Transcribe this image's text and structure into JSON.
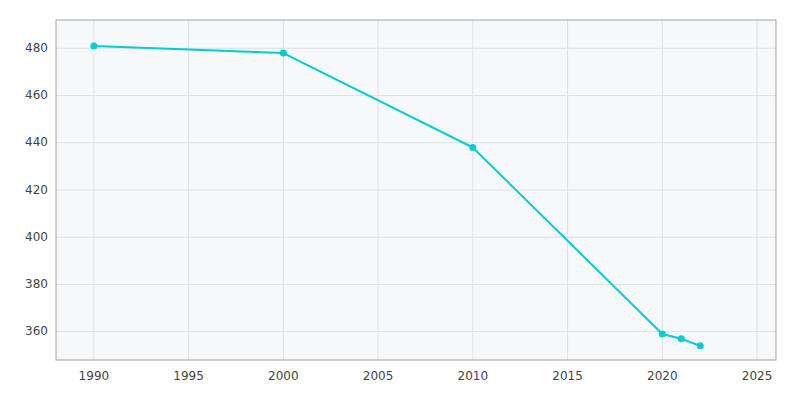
{
  "chart_data": {
    "type": "line",
    "x": [
      1990,
      2000,
      2010,
      2020,
      2021,
      2022
    ],
    "values": [
      481,
      478,
      438,
      359,
      357,
      354
    ],
    "color": "#00CED1",
    "marker": "circle",
    "xlim": [
      1988,
      2026
    ],
    "ylim": [
      348,
      492
    ],
    "xticks": [
      1990,
      1995,
      2000,
      2005,
      2010,
      2015,
      2020,
      2025
    ],
    "yticks": [
      360,
      380,
      400,
      420,
      440,
      460,
      480
    ],
    "grid": true
  }
}
